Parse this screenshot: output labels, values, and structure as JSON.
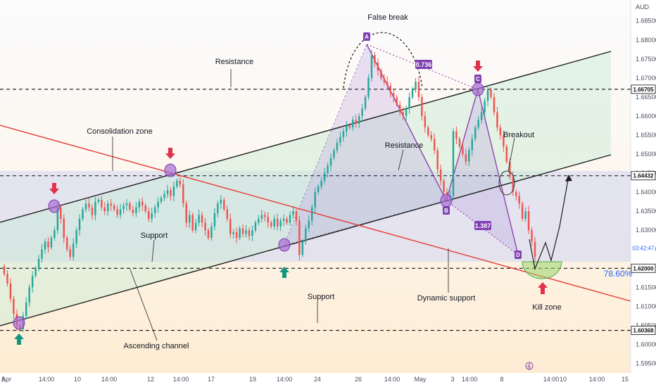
{
  "chart_data": {
    "type": "candlestick",
    "currency_label": "AUD",
    "y_ticks": [
      1.685,
      1.68,
      1.675,
      1.67,
      1.665,
      1.66,
      1.655,
      1.65,
      1.645,
      1.64,
      1.635,
      1.63,
      1.625,
      1.615,
      1.61,
      1.605,
      1.6,
      1.595
    ],
    "ylim": [
      1.5925,
      1.6905
    ],
    "x_ticks": [
      "Apr",
      "5",
      "14:00",
      "10",
      "14:00",
      "12",
      "14:00",
      "17",
      "19",
      "14:00",
      "24",
      "26",
      "14:00",
      "May",
      "3",
      "14:00",
      "8",
      "14:00",
      "10",
      "14:00",
      "15"
    ],
    "horizontal_levels": [
      {
        "label": "1.66705",
        "value": 1.66705,
        "highlight": false
      },
      {
        "label": "1.64432",
        "value": 1.64432,
        "highlight": false
      },
      {
        "label": "1.62000",
        "value": 1.62,
        "highlight": false
      },
      {
        "label": "1.60368",
        "value": 1.60368,
        "highlight": false
      }
    ],
    "countdown_label": "03:42:47",
    "countdown_value": 1.6253,
    "fib_label": "78.60%",
    "harmonic_points": [
      {
        "label": "A",
        "value": 1.6784
      },
      {
        "label": "B",
        "value": 1.6358
      },
      {
        "label": "C",
        "value": 1.6668
      },
      {
        "label": "D",
        "value": 1.6228
      }
    ],
    "ratio_labels": [
      "0.736",
      "1.387"
    ],
    "annotations": [
      "False break",
      "Resistance",
      "Consolidation zone",
      "Resistance",
      "Breakout",
      "Support",
      "Support",
      "Dynamic support",
      "Ascending channel",
      "Kill zone"
    ],
    "candles_close": [
      1.6185,
      1.616,
      1.612,
      1.608,
      1.605,
      1.604,
      1.6075,
      1.611,
      1.615,
      1.618,
      1.62,
      1.6225,
      1.625,
      1.627,
      1.6255,
      1.628,
      1.63,
      1.636,
      1.633,
      1.628,
      1.625,
      1.623,
      1.6265,
      1.63,
      1.633,
      1.6355,
      1.637,
      1.636,
      1.634,
      1.6375,
      1.638,
      1.636,
      1.635,
      1.637,
      1.6365,
      1.6355,
      1.634,
      1.6355,
      1.6365,
      1.637,
      1.6355,
      1.6345,
      1.636,
      1.6375,
      1.6365,
      1.635,
      1.633,
      1.6345,
      1.636,
      1.6375,
      1.6385,
      1.6395,
      1.6405,
      1.639,
      1.6415,
      1.643,
      1.642,
      1.637,
      1.632,
      1.634,
      1.63,
      1.632,
      1.634,
      1.632,
      1.63,
      1.628,
      1.631,
      1.6345,
      1.637,
      1.638,
      1.6355,
      1.633,
      1.629,
      1.6295,
      1.628,
      1.6305,
      1.629,
      1.63,
      1.6285,
      1.63,
      1.632,
      1.633,
      1.634,
      1.6335,
      1.632,
      1.631,
      1.633,
      1.631,
      1.6325,
      1.633,
      1.632,
      1.634,
      1.635,
      1.6325,
      1.6235,
      1.627,
      1.6305,
      1.6325,
      1.636,
      1.64,
      1.6415,
      1.643,
      1.645,
      1.647,
      1.649,
      1.651,
      1.653,
      1.6545,
      1.656,
      1.6575,
      1.657,
      1.659,
      1.658,
      1.66,
      1.662,
      1.665,
      1.67,
      1.676,
      1.674,
      1.672,
      1.67,
      1.669,
      1.668,
      1.666,
      1.665,
      1.663,
      1.661,
      1.66,
      1.662,
      1.665,
      1.667,
      1.669,
      1.665,
      1.66,
      1.657,
      1.655,
      1.654,
      1.651,
      1.646,
      1.643,
      1.64,
      1.6385,
      1.639,
      1.656,
      1.654,
      1.652,
      1.65,
      1.648,
      1.651,
      1.654,
      1.657,
      1.659,
      1.661,
      1.664,
      1.667,
      1.665,
      1.661,
      1.657,
      1.655,
      1.652,
      1.648,
      1.644,
      1.64,
      1.639,
      1.637,
      1.633,
      1.635,
      1.63,
      1.627,
      1.623
    ]
  }
}
